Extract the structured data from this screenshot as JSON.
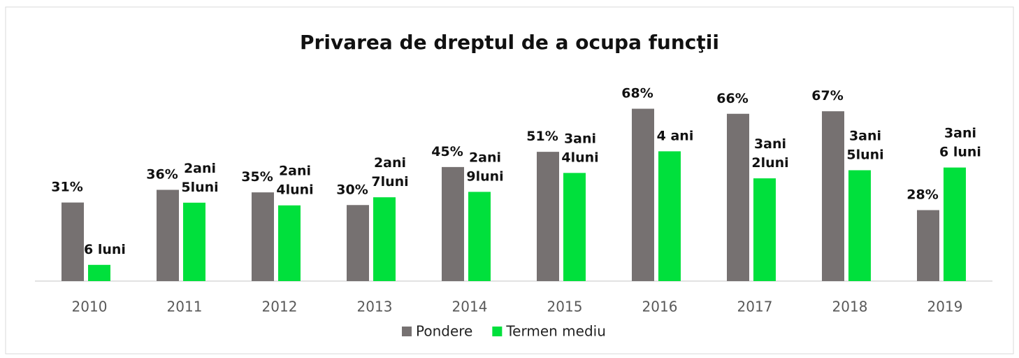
{
  "chart_data": {
    "type": "bar",
    "title": "Privarea de dreptul de a ocupa funcţii",
    "categories": [
      "2010",
      "2011",
      "2012",
      "2013",
      "2014",
      "2015",
      "2016",
      "2017",
      "2018",
      "2019"
    ],
    "series": [
      {
        "name": "Pondere",
        "color": "#767171",
        "values": [
          31,
          36,
          35,
          30,
          45,
          51,
          68,
          66,
          67,
          28
        ],
        "value_labels": [
          "31%",
          "36%",
          "35%",
          "30%",
          "45%",
          "51%",
          "68%",
          "66%",
          "67%",
          "28%"
        ]
      },
      {
        "name": "Termen mediu",
        "color": "#00e03c",
        "axis": "y2",
        "values": [
          6,
          29,
          28,
          31,
          33,
          40,
          48,
          38,
          41,
          42
        ],
        "value_labels": [
          "6 luni",
          "2ani\n5luni",
          "2ani\n4luni",
          "2ani\n7luni",
          "2ani\n9luni",
          "3ani\n4luni",
          "4 ani",
          "3ani\n2luni",
          "3ani\n5luni",
          "3ani\n6 luni"
        ]
      }
    ],
    "ylim": [
      0,
      80
    ],
    "y2lim": [
      0,
      75
    ],
    "legend": "bottom"
  }
}
